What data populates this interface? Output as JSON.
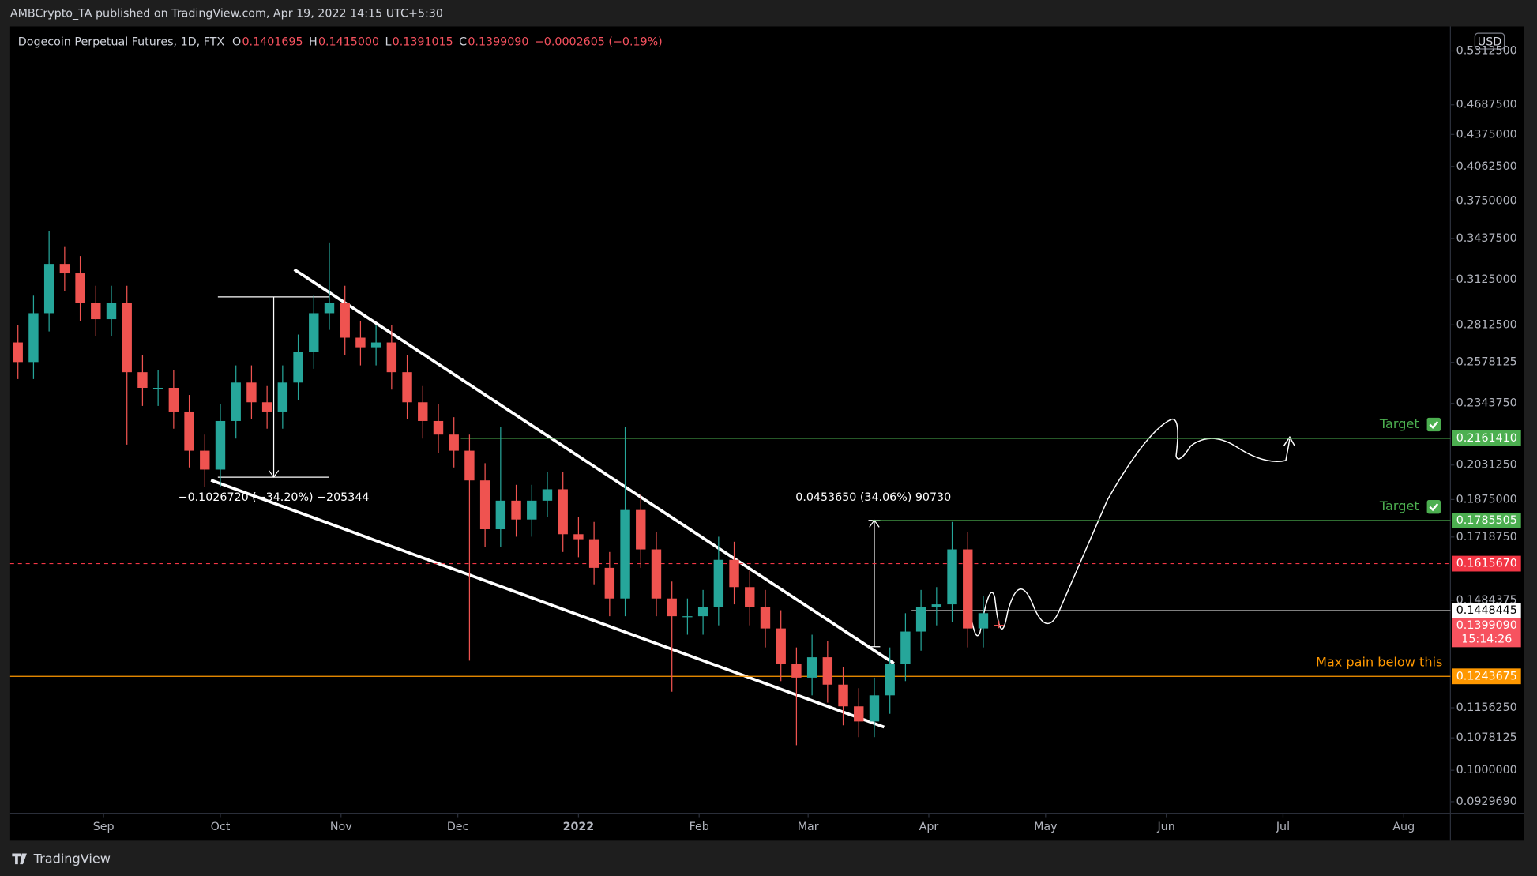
{
  "header": {
    "published": "AMBCrypto_TA published on TradingView.com, Apr 19, 2022 14:15 UTC+5:30",
    "footer": "TradingView"
  },
  "chart_data": {
    "type": "candlestick",
    "title": "Dogecoin Perpetual Futures, 1D, FTX",
    "currency": "USD",
    "legend_values": [
      {
        "name": "O",
        "value": 0.1401695,
        "label": "0.1401695"
      },
      {
        "name": "H",
        "value": 0.1415,
        "label": "0.1415000"
      },
      {
        "name": "L",
        "value": 0.1391015,
        "label": "0.1391015"
      },
      {
        "name": "C",
        "value": 0.139909,
        "label": "0.1399090"
      }
    ],
    "change": "−0.0002605 (−0.19%)",
    "up_color": "#26a69a",
    "down_color": "#ef5350",
    "x": [
      -22,
      -18,
      -14,
      -10,
      -6,
      -2,
      2,
      6,
      10,
      14,
      18,
      22,
      26,
      30,
      34,
      38,
      42,
      46,
      50,
      54,
      58,
      62,
      66,
      70,
      74,
      78,
      82,
      86,
      90,
      94,
      98,
      102,
      106,
      110,
      114,
      118,
      122,
      126,
      130,
      134,
      138,
      142,
      146,
      150,
      154,
      158,
      162,
      166,
      170,
      174,
      178,
      182,
      186,
      190,
      194,
      198,
      202,
      206,
      210,
      214,
      218,
      222,
      226,
      230
    ],
    "open": [
      0.27,
      0.258,
      0.289,
      0.324,
      0.317,
      0.296,
      0.285,
      0.296,
      0.252,
      0.243,
      0.243,
      0.23,
      0.21,
      0.201,
      0.225,
      0.246,
      0.235,
      0.23,
      0.246,
      0.264,
      0.289,
      0.296,
      0.273,
      0.267,
      0.27,
      0.252,
      0.235,
      0.225,
      0.218,
      0.21,
      0.196,
      0.175,
      0.187,
      0.179,
      0.187,
      0.192,
      0.173,
      0.171,
      0.16,
      0.149,
      0.183,
      0.167,
      0.149,
      0.143,
      0.143,
      0.146,
      0.163,
      0.153,
      0.146,
      0.139,
      0.128,
      0.124,
      0.13,
      0.122,
      0.116,
      0.112,
      0.119,
      0.128,
      0.138,
      0.146,
      0.147,
      0.167,
      0.139,
      0.1401695
    ],
    "high": [
      0.281,
      0.301,
      0.35,
      0.337,
      0.33,
      0.308,
      0.308,
      0.308,
      0.262,
      0.253,
      0.253,
      0.239,
      0.218,
      0.234,
      0.256,
      0.256,
      0.244,
      0.256,
      0.275,
      0.301,
      0.34,
      0.308,
      0.284,
      0.281,
      0.281,
      0.262,
      0.244,
      0.234,
      0.227,
      0.218,
      0.204,
      0.222,
      0.194,
      0.194,
      0.2,
      0.2,
      0.18,
      0.178,
      0.166,
      0.222,
      0.19,
      0.174,
      0.155,
      0.149,
      0.152,
      0.172,
      0.17,
      0.159,
      0.152,
      0.145,
      0.133,
      0.137,
      0.135,
      0.127,
      0.121,
      0.124,
      0.133,
      0.144,
      0.152,
      0.153,
      0.178,
      0.174,
      0.15,
      0.1415
    ],
    "low": [
      0.248,
      0.248,
      0.277,
      0.304,
      0.284,
      0.274,
      0.274,
      0.213,
      0.233,
      0.233,
      0.221,
      0.202,
      0.193,
      0.193,
      0.216,
      0.226,
      0.221,
      0.221,
      0.236,
      0.254,
      0.278,
      0.262,
      0.256,
      0.256,
      0.242,
      0.226,
      0.216,
      0.209,
      0.202,
      0.129,
      0.168,
      0.168,
      0.172,
      0.172,
      0.18,
      0.166,
      0.164,
      0.154,
      0.143,
      0.143,
      0.16,
      0.143,
      0.12,
      0.137,
      0.137,
      0.14,
      0.147,
      0.14,
      0.133,
      0.123,
      0.106,
      0.119,
      0.117,
      0.111,
      0.108,
      0.108,
      0.114,
      0.123,
      0.132,
      0.14,
      0.141,
      0.133,
      0.133,
      0.1391015
    ],
    "close": [
      0.258,
      0.289,
      0.324,
      0.317,
      0.296,
      0.285,
      0.296,
      0.252,
      0.243,
      0.243,
      0.23,
      0.21,
      0.201,
      0.225,
      0.246,
      0.235,
      0.23,
      0.246,
      0.264,
      0.289,
      0.296,
      0.273,
      0.267,
      0.27,
      0.252,
      0.235,
      0.225,
      0.218,
      0.21,
      0.196,
      0.175,
      0.187,
      0.179,
      0.187,
      0.192,
      0.173,
      0.171,
      0.16,
      0.149,
      0.183,
      0.167,
      0.149,
      0.143,
      0.143,
      0.146,
      0.163,
      0.153,
      0.146,
      0.139,
      0.128,
      0.124,
      0.13,
      0.122,
      0.116,
      0.112,
      0.119,
      0.128,
      0.138,
      0.146,
      0.147,
      0.167,
      0.139,
      0.144,
      0.139909
    ],
    "xlim": [
      -24,
      346
    ],
    "xticks": [
      {
        "value": 0,
        "label": "Sep"
      },
      {
        "value": 30,
        "label": "Oct"
      },
      {
        "value": 61,
        "label": "Nov"
      },
      {
        "value": 91,
        "label": "Dec"
      },
      {
        "value": 122,
        "label": "2022"
      },
      {
        "value": 153,
        "label": "Feb"
      },
      {
        "value": 181,
        "label": "Mar"
      },
      {
        "value": 212,
        "label": "Apr"
      },
      {
        "value": 242,
        "label": "May"
      },
      {
        "value": 273,
        "label": "Jun"
      },
      {
        "value": 303,
        "label": "Jul"
      },
      {
        "value": 334,
        "label": "Aug"
      }
    ],
    "ylim": [
      0.0905,
      0.5623
    ],
    "ylog": true,
    "grid": false,
    "yticks": [
      {
        "value": 0.53125,
        "label": "0.5312500"
      },
      {
        "value": 0.46875,
        "label": "0.4687500"
      },
      {
        "value": 0.4375,
        "label": "0.4375000"
      },
      {
        "value": 0.40625,
        "label": "0.4062500"
      },
      {
        "value": 0.375,
        "label": "0.3750000"
      },
      {
        "value": 0.34375,
        "label": "0.3437500"
      },
      {
        "value": 0.3125,
        "label": "0.3125000"
      },
      {
        "value": 0.28125,
        "label": "0.2812500"
      },
      {
        "value": 0.2578125,
        "label": "0.2578125"
      },
      {
        "value": 0.234375,
        "label": "0.2343750"
      },
      {
        "value": 0.203125,
        "label": "0.2031250"
      },
      {
        "value": 0.1875,
        "label": "0.1875000"
      },
      {
        "value": 0.171875,
        "label": "0.1718750"
      },
      {
        "value": 0.1484375,
        "label": "0.1484375"
      },
      {
        "value": 0.115625,
        "label": "0.1156250"
      },
      {
        "value": 0.1078125,
        "label": "0.1078125"
      },
      {
        "value": 0.1,
        "label": "0.1000000"
      },
      {
        "value": 0.092969,
        "label": "0.0929690"
      }
    ],
    "price_lines": [
      {
        "value": 0.216141,
        "label": "0.2161410",
        "color": "#4caf50",
        "note": "Target"
      },
      {
        "value": 0.1785505,
        "label": "0.1785505",
        "color": "#4caf50",
        "note": "Target"
      },
      {
        "value": 0.161567,
        "label": "0.1615670",
        "color": "#f23645",
        "dashed": true
      },
      {
        "value": 0.1448445,
        "label": "0.1448445",
        "color": "#ffffff"
      },
      {
        "value": 0.139909,
        "label": "0.1399090",
        "color": "#f7525f",
        "countdown": "15:14:26"
      },
      {
        "value": 0.1243675,
        "label": "0.1243675",
        "color": "#ff9800",
        "note": "Max pain below this"
      }
    ],
    "annotations": [
      "−0.1026720 (−34.20%) −205344",
      "0.0453650 (34.06%) 90730"
    ]
  }
}
